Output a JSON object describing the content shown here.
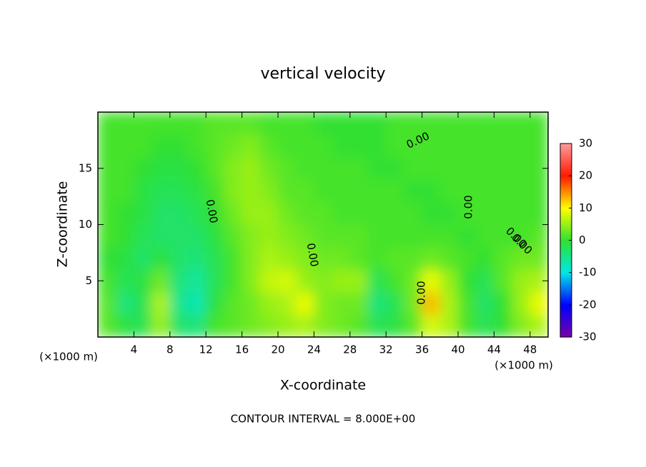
{
  "chart_data": {
    "type": "contour",
    "title": "vertical velocity",
    "xlabel": "X-coordinate",
    "ylabel": "Z-coordinate",
    "x_unit_left": "(×1000 m)",
    "x_unit_right": "(×1000 m)",
    "footer": "CONTOUR INTERVAL = 8.000E+00",
    "xlim": [
      0,
      50
    ],
    "ylim": [
      0,
      20
    ],
    "xticks": [
      4,
      8,
      12,
      16,
      20,
      24,
      28,
      32,
      36,
      40,
      44,
      48
    ],
    "yticks": [
      5,
      10,
      15
    ],
    "x": [
      1,
      3,
      5,
      7,
      9,
      11,
      13,
      15,
      17,
      19,
      21,
      23,
      25,
      27,
      29,
      31,
      33,
      35,
      37,
      39,
      41,
      43,
      45,
      47,
      49
    ],
    "y": [
      1,
      3,
      5,
      7,
      9,
      11,
      13,
      15,
      17,
      19
    ],
    "z": [
      [
        2,
        -1,
        -2,
        5,
        -3,
        -4,
        1,
        2,
        3,
        4,
        5,
        6,
        4,
        3,
        2,
        -2,
        -1,
        2,
        8,
        6,
        1,
        -2,
        0,
        4,
        6
      ],
      [
        2,
        -4,
        -2,
        6,
        -5,
        -7,
        -1,
        2,
        3,
        5,
        6,
        9,
        4,
        3,
        3,
        -4,
        -2,
        3,
        13,
        6,
        1,
        -3,
        0,
        5,
        9
      ],
      [
        1,
        -2,
        -1,
        3,
        -4,
        -6,
        -2,
        1,
        4,
        7,
        8,
        5,
        4,
        5,
        5,
        -2,
        1,
        3,
        9,
        5,
        0,
        -2,
        2,
        5,
        6
      ],
      [
        0,
        -1,
        -3,
        -1,
        -3,
        -4,
        -2,
        1,
        4,
        6,
        5,
        4,
        3,
        3,
        2,
        1,
        2,
        2,
        3,
        2,
        1,
        0,
        2,
        3,
        3
      ],
      [
        1,
        0,
        -2,
        -3,
        -3,
        -3,
        -1,
        2,
        4,
        5,
        4,
        3,
        2,
        2,
        2,
        1,
        1,
        1,
        1,
        1,
        0,
        1,
        1,
        1,
        2
      ],
      [
        1,
        0,
        -1,
        -3,
        -3,
        -2,
        0,
        3,
        5,
        5,
        3,
        2,
        2,
        1,
        1,
        1,
        1,
        1,
        0,
        0,
        1,
        1,
        1,
        1,
        1
      ],
      [
        1,
        1,
        -1,
        -2,
        -2,
        -1,
        1,
        4,
        5,
        4,
        2,
        2,
        1,
        1,
        1,
        1,
        1,
        0,
        0,
        1,
        1,
        1,
        1,
        1,
        1
      ],
      [
        1,
        1,
        0,
        -1,
        -1,
        0,
        2,
        4,
        5,
        3,
        2,
        1,
        1,
        1,
        1,
        0,
        0,
        1,
        1,
        1,
        1,
        1,
        1,
        1,
        1
      ],
      [
        1,
        1,
        1,
        0,
        0,
        1,
        2,
        3,
        4,
        2,
        1,
        1,
        1,
        0,
        0,
        0,
        1,
        1,
        1,
        1,
        1,
        1,
        1,
        1,
        1
      ],
      [
        1,
        1,
        1,
        1,
        1,
        1,
        2,
        2,
        2,
        1,
        1,
        1,
        0,
        0,
        0,
        0,
        1,
        1,
        1,
        1,
        1,
        1,
        1,
        1,
        1
      ]
    ],
    "contour_labels": [
      "0.00",
      "0.00",
      "0.00",
      "0.00",
      "0.00",
      "0.00",
      "0.00"
    ],
    "colorbar_lim": [
      -30,
      30
    ],
    "colorbar_ticks": [
      30,
      20,
      10,
      0,
      -10,
      -20,
      -30
    ],
    "colorscale": [
      "#7a00a8",
      "#0000ff",
      "#00e8e8",
      "#30e030",
      "#ffff00",
      "#ff1a00",
      "#ff9a9a"
    ]
  }
}
